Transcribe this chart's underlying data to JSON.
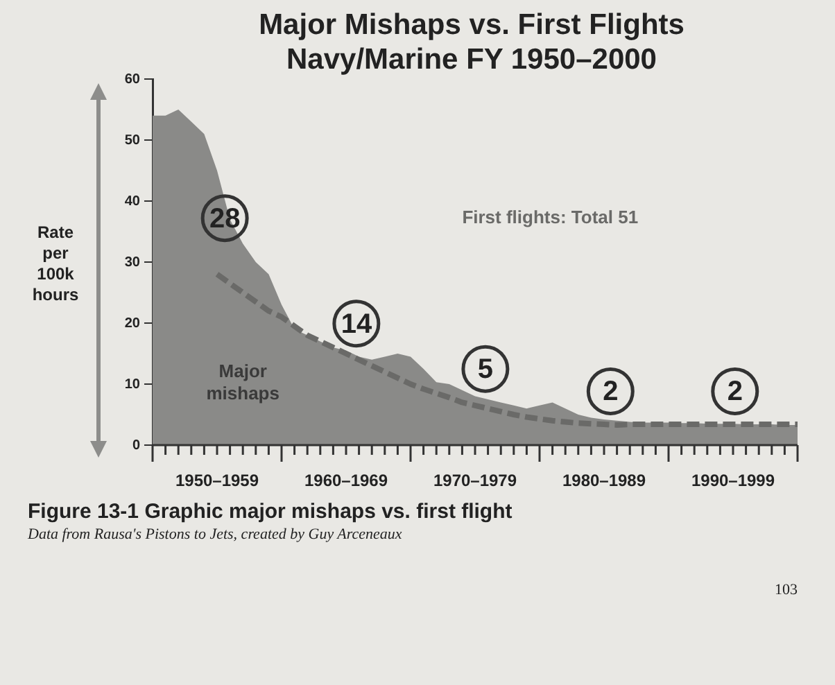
{
  "chart_data": {
    "type": "area",
    "title": "Major Mishaps vs. First Flights Navy/Marine FY 1950–2000",
    "ylabel": "Rate per 100k hours",
    "ylim": [
      0,
      60
    ],
    "yticks": [
      0,
      10,
      20,
      30,
      40,
      50,
      60
    ],
    "categories": [
      null,
      null,
      null,
      null,
      null,
      "1950–1959",
      null,
      null,
      null,
      null,
      null,
      null,
      null,
      null,
      null,
      "1960–1969",
      null,
      null,
      null,
      null,
      null,
      null,
      null,
      null,
      null,
      "1970–1979",
      null,
      null,
      null,
      null,
      null,
      null,
      null,
      null,
      null,
      "1980–1989",
      null,
      null,
      null,
      null,
      null,
      null,
      null,
      null,
      null,
      "1990–1999",
      null,
      null,
      null,
      null,
      null
    ],
    "series": [
      {
        "name": "Major mishaps",
        "color": "#8a8a88",
        "values": [
          54,
          54,
          55,
          53,
          51,
          45,
          37,
          33,
          30,
          28,
          23,
          19,
          18,
          17,
          16,
          15.5,
          14.5,
          14,
          14.5,
          15,
          14.5,
          12.5,
          10.3,
          10,
          9,
          8,
          7.5,
          7,
          6.5,
          6,
          6.5,
          7,
          6,
          5,
          4.5,
          4.2,
          4,
          3.8,
          3.7,
          3.7,
          3.7,
          3.6,
          3.6,
          3.5,
          3.5,
          3.5,
          3.4,
          3.4,
          3.4,
          3.3,
          3.3
        ]
      },
      {
        "name": "First flights: Total 51",
        "type": "line",
        "color": "#6a6a68",
        "line_style": "dashed",
        "values": [
          null,
          null,
          null,
          null,
          null,
          28,
          26.5,
          25,
          23.5,
          22,
          21,
          19.5,
          18,
          17,
          16,
          15,
          14,
          13,
          12,
          11,
          10,
          9.2,
          8.5,
          7.8,
          7,
          6.5,
          6,
          5.5,
          5,
          4.6,
          4.3,
          4,
          3.8,
          3.6,
          3.5,
          3.4,
          3.3,
          3.4,
          3.4,
          3.4,
          3.4,
          3.4,
          3.4,
          3.4,
          3.4,
          3.4,
          3.4,
          3.4,
          3.4,
          3.4,
          3.4
        ]
      }
    ],
    "annotations": [
      "28",
      "14",
      "5",
      "2",
      "2",
      "Figure 13-1 Graphic major mishaps vs. first flight",
      "Data from Rausa's Pistons to Jets, created by Guy Arceneaux",
      "103"
    ],
    "grid": false,
    "legend": false,
    "marker": "none"
  }
}
